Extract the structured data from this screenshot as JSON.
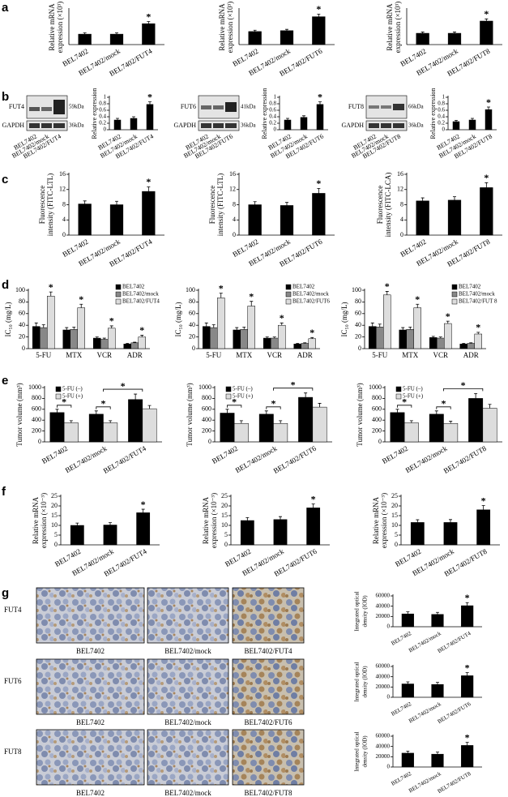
{
  "panels": [
    "a",
    "b",
    "c",
    "d",
    "e",
    "f",
    "g"
  ],
  "blots": [
    {
      "protein": "FUT4",
      "size": "59kDa",
      "control": "GAPDH",
      "control_size": "36kDa",
      "lanes": [
        "BEL7402",
        "BEL7402/mock",
        "BEL7402/FUT4"
      ]
    },
    {
      "protein": "FUT6",
      "size": "41kDa",
      "control": "GAPDH",
      "control_size": "36kDa",
      "lanes": [
        "BEL7402",
        "BEL7402/mock",
        "BEL7402/FUT6"
      ]
    },
    {
      "protein": "FUT8",
      "size": "66kDa",
      "control": "GAPDH",
      "control_size": "36kDa",
      "lanes": [
        "BEL7402",
        "BEL7402/mock",
        "BEL7402/FUT8"
      ]
    }
  ],
  "ihc": {
    "rows": [
      {
        "label": "FUT4",
        "captions": [
          "BEL7402",
          "BEL7402/mock",
          "BEL7402/FUT4"
        ]
      },
      {
        "label": "FUT6",
        "captions": [
          "BEL7402",
          "BEL7402/mock",
          "BEL7402/FUT6"
        ]
      },
      {
        "label": "FUT8",
        "captions": [
          "BEL7402",
          "BEL7402/mock",
          "BEL7402/FUT8"
        ]
      }
    ]
  },
  "chart_data": [
    {
      "type": "bar",
      "ylabel": [
        "Relative mRNA",
        "expression (×10³)"
      ],
      "categories": [
        "BEL7402",
        "BEL7402/mock",
        "BEL7402/FUT4"
      ],
      "series": [
        {
          "color": "#000000",
          "values": [
            12,
            12,
            24
          ],
          "errors": [
            1.5,
            1.5,
            2.5
          ]
        }
      ],
      "ylim": [
        0,
        40
      ],
      "annotations": [
        {
          "text": "*",
          "category": "BEL7402/FUT4"
        }
      ]
    },
    {
      "type": "bar",
      "ylabel": [
        "Relative mRNA",
        "expression (×10³)"
      ],
      "categories": [
        "BEL7402",
        "BEL7402/mock",
        "BEL7402/FUT6"
      ],
      "series": [
        {
          "color": "#000000",
          "values": [
            15,
            16,
            32
          ],
          "errors": [
            1.5,
            1.5,
            3
          ]
        }
      ],
      "ylim": [
        0,
        40
      ],
      "annotations": [
        {
          "text": "*",
          "category": "BEL7402/FUT6"
        }
      ]
    },
    {
      "type": "bar",
      "ylabel": [
        "Relative mRNA",
        "expression (×10³)"
      ],
      "categories": [
        "BEL7402",
        "BEL7402/mock",
        "BEL7402/FUT8"
      ],
      "series": [
        {
          "color": "#000000",
          "values": [
            13,
            13,
            27
          ],
          "errors": [
            1.5,
            1.5,
            2.5
          ]
        }
      ],
      "ylim": [
        0,
        40
      ],
      "annotations": [
        {
          "text": "*",
          "category": "BEL7402/FUT8"
        }
      ]
    },
    {
      "type": "bar",
      "ylabel": [
        "Relative expression"
      ],
      "categories": [
        "BEL7402",
        "BEL7402/mock",
        "BEL7402/FUT4"
      ],
      "series": [
        {
          "color": "#000000",
          "values": [
            0.3,
            0.35,
            0.78
          ],
          "errors": [
            0.05,
            0.05,
            0.08
          ]
        }
      ],
      "ylim": [
        0,
        1
      ],
      "yticks": [
        0,
        0.2,
        0.4,
        0.6,
        0.8,
        1
      ],
      "annotations": [
        {
          "text": "*",
          "category": "BEL7402/FUT4"
        }
      ]
    },
    {
      "type": "bar",
      "ylabel": [
        "Relative expression"
      ],
      "categories": [
        "BEL7402",
        "BEL7402/mock",
        "BEL7402/FUT6"
      ],
      "series": [
        {
          "color": "#000000",
          "values": [
            0.3,
            0.38,
            0.78
          ],
          "errors": [
            0.05,
            0.05,
            0.08
          ]
        }
      ],
      "ylim": [
        0,
        1
      ],
      "yticks": [
        0,
        0.2,
        0.4,
        0.6,
        0.8,
        1
      ],
      "annotations": [
        {
          "text": "*",
          "category": "BEL7402/FUT6"
        }
      ]
    },
    {
      "type": "bar",
      "ylabel": [
        "Relative expression"
      ],
      "categories": [
        "BEL7402",
        "BEL7402/mock",
        "BEL7402/FUT8"
      ],
      "series": [
        {
          "color": "#000000",
          "values": [
            0.25,
            0.3,
            0.62
          ],
          "errors": [
            0.04,
            0.05,
            0.08
          ]
        }
      ],
      "ylim": [
        0,
        1
      ],
      "yticks": [
        0,
        0.2,
        0.4,
        0.6,
        0.8,
        1
      ],
      "annotations": [
        {
          "text": "*",
          "category": "BEL7402/FUT8"
        }
      ]
    },
    {
      "type": "bar",
      "ylabel": [
        "Fluorescence",
        "intensity (FITC-LTL)"
      ],
      "categories": [
        "BEL7402",
        "BEL7402/mock",
        "BEL7402/FUT4"
      ],
      "series": [
        {
          "color": "#000000",
          "values": [
            8.2,
            8,
            11.5
          ],
          "errors": [
            0.8,
            0.9,
            1.2
          ]
        }
      ],
      "ylim": [
        0,
        16
      ],
      "yticks": [
        0,
        4,
        8,
        12,
        16
      ],
      "annotations": [
        {
          "text": "*",
          "category": "BEL7402/FUT4"
        }
      ]
    },
    {
      "type": "bar",
      "ylabel": [
        "Fluorescence",
        "intensity (FITC-LTL)"
      ],
      "categories": [
        "BEL7402",
        "BEL7402/mock",
        "BEL7402/FUT6"
      ],
      "series": [
        {
          "color": "#000000",
          "values": [
            8,
            7.8,
            11
          ],
          "errors": [
            0.8,
            0.8,
            1.3
          ]
        }
      ],
      "ylim": [
        0,
        16
      ],
      "yticks": [
        0,
        4,
        8,
        12,
        16
      ],
      "annotations": [
        {
          "text": "*",
          "category": "BEL7402/FUT6"
        }
      ]
    },
    {
      "type": "bar",
      "ylabel": [
        "Fluorescence",
        "intensity (FITC-LCA)"
      ],
      "categories": [
        "BEL7402",
        "BEL7402/mock",
        "BEL7402/FUT8"
      ],
      "series": [
        {
          "color": "#000000",
          "values": [
            9,
            9.2,
            12.5
          ],
          "errors": [
            0.8,
            0.9,
            1.3
          ]
        }
      ],
      "ylim": [
        0,
        16
      ],
      "yticks": [
        0,
        4,
        8,
        12,
        16
      ],
      "annotations": [
        {
          "text": "*",
          "category": "BEL7402/FUT8"
        }
      ]
    },
    {
      "type": "bar",
      "ylabel": [
        "IC₅₀ (mg/L)"
      ],
      "categories": [
        "5-FU",
        "MTX",
        "VCR",
        "ADR"
      ],
      "series": [
        {
          "name": "BEL7402",
          "color": "#000000",
          "values": [
            38,
            32,
            18,
            8
          ],
          "errors": [
            6,
            4,
            2,
            1
          ]
        },
        {
          "name": "BEL7402/mock",
          "color": "#888888",
          "values": [
            36,
            33,
            16,
            10
          ],
          "errors": [
            5,
            4,
            2,
            1
          ]
        },
        {
          "name": "BEL7402/FUT4",
          "color": "#dddddd",
          "values": [
            90,
            70,
            35,
            20
          ],
          "errors": [
            7,
            6,
            4,
            3
          ]
        }
      ],
      "ylim": [
        0,
        100
      ],
      "yticks": [
        0,
        20,
        40,
        60,
        80,
        100
      ],
      "annotations": [
        {
          "text": "*",
          "category": "5-FU"
        },
        {
          "text": "*",
          "category": "MTX"
        },
        {
          "text": "*",
          "category": "VCR"
        },
        {
          "text": "*",
          "category": "ADR"
        }
      ]
    },
    {
      "type": "bar",
      "ylabel": [
        "IC₅₀ (mg/L)"
      ],
      "categories": [
        "5-FU",
        "MTX",
        "VCR",
        "ADR"
      ],
      "series": [
        {
          "name": "BEL7402",
          "color": "#000000",
          "values": [
            38,
            32,
            18,
            8
          ],
          "errors": [
            6,
            4,
            2,
            1
          ]
        },
        {
          "name": "BEL7402/mock",
          "color": "#888888",
          "values": [
            36,
            33,
            18,
            9
          ],
          "errors": [
            5,
            4,
            2,
            1
          ]
        },
        {
          "name": "BEL7402/FUT6",
          "color": "#dddddd",
          "values": [
            87,
            73,
            40,
            17
          ],
          "errors": [
            8,
            8,
            4,
            2
          ]
        }
      ],
      "ylim": [
        0,
        100
      ],
      "yticks": [
        0,
        20,
        40,
        60,
        80,
        100
      ],
      "annotations": [
        {
          "text": "*",
          "category": "5-FU"
        },
        {
          "text": "*",
          "category": "MTX"
        },
        {
          "text": "*",
          "category": "VCR"
        },
        {
          "text": "*",
          "category": "ADR"
        }
      ]
    },
    {
      "type": "bar",
      "ylabel": [
        "IC₅₀ (mg/L)"
      ],
      "categories": [
        "5-FU",
        "MTX",
        "VCR",
        "ADR"
      ],
      "series": [
        {
          "name": "BEL7402",
          "color": "#000000",
          "values": [
            38,
            32,
            19,
            8
          ],
          "errors": [
            6,
            4,
            2,
            1
          ]
        },
        {
          "name": "BEL7402/mock",
          "color": "#888888",
          "values": [
            37,
            33,
            18,
            9
          ],
          "errors": [
            5,
            4,
            2,
            1
          ]
        },
        {
          "name": "BEL7402/FUT 8",
          "color": "#dddddd",
          "values": [
            92,
            70,
            43,
            25
          ],
          "errors": [
            6,
            6,
            4,
            3
          ]
        }
      ],
      "ylim": [
        0,
        100
      ],
      "yticks": [
        0,
        20,
        40,
        60,
        80,
        100
      ],
      "annotations": [
        {
          "text": "*",
          "category": "5-FU"
        },
        {
          "text": "*",
          "category": "MTX"
        },
        {
          "text": "*",
          "category": "VCR"
        },
        {
          "text": "*",
          "category": "ADR"
        }
      ]
    },
    {
      "type": "bar",
      "ylabel": [
        "Tumor volume (mm³)"
      ],
      "categories": [
        "BEL7402",
        "BEL7402/mock",
        "BEL7402/FUT4"
      ],
      "series": [
        {
          "name": "5-FU (–)",
          "color": "#000000",
          "values": [
            540,
            510,
            780
          ],
          "errors": [
            60,
            60,
            100
          ]
        },
        {
          "name": "5-FU (+)",
          "color": "#dddddd",
          "values": [
            350,
            350,
            610
          ],
          "errors": [
            40,
            40,
            60
          ]
        }
      ],
      "ylim": [
        0,
        1000
      ],
      "yticks": [
        0,
        200,
        400,
        600,
        800,
        1000
      ],
      "annotations": [
        {
          "text": "*",
          "category": "BEL7402",
          "bracket": true
        },
        {
          "text": "*",
          "category": "BEL7402/mock",
          "bracket": true
        },
        {
          "text": "*",
          "span": [
            "BEL7402/mock",
            "BEL7402/FUT4"
          ]
        }
      ]
    },
    {
      "type": "bar",
      "ylabel": [
        "Tumor volume (mm³)"
      ],
      "categories": [
        "BEL7402",
        "BEL7402/mock",
        "BEL7402/FUT6"
      ],
      "series": [
        {
          "name": "5-FU (–)",
          "color": "#000000",
          "values": [
            530,
            510,
            820
          ],
          "errors": [
            70,
            60,
            80
          ]
        },
        {
          "name": "5-FU (+)",
          "color": "#dddddd",
          "values": [
            340,
            340,
            640
          ],
          "errors": [
            50,
            50,
            70
          ]
        }
      ],
      "ylim": [
        0,
        1000
      ],
      "yticks": [
        0,
        200,
        400,
        600,
        800,
        1000
      ],
      "annotations": [
        {
          "text": "*",
          "category": "BEL7402",
          "bracket": true
        },
        {
          "text": "*",
          "category": "BEL7402/mock",
          "bracket": true
        },
        {
          "text": "*",
          "span": [
            "BEL7402/mock",
            "BEL7402/FUT6"
          ]
        }
      ]
    },
    {
      "type": "bar",
      "ylabel": [
        "Tumor volume (mm³)"
      ],
      "categories": [
        "BEL7402",
        "BEL7402/mock",
        "BEL7402/FUT8"
      ],
      "series": [
        {
          "name": "5-FU (–)",
          "color": "#000000",
          "values": [
            540,
            510,
            800
          ],
          "errors": [
            60,
            60,
            90
          ]
        },
        {
          "name": "5-FU (+)",
          "color": "#dddddd",
          "values": [
            350,
            340,
            620
          ],
          "errors": [
            40,
            40,
            70
          ]
        }
      ],
      "ylim": [
        0,
        1000
      ],
      "yticks": [
        0,
        200,
        400,
        600,
        800,
        1000
      ],
      "annotations": [
        {
          "text": "*",
          "category": "BEL7402",
          "bracket": true
        },
        {
          "text": "*",
          "category": "BEL7402/mock",
          "bracket": true
        },
        {
          "text": "*",
          "span": [
            "BEL7402/mock",
            "BEL7402/FUT8"
          ]
        }
      ]
    },
    {
      "type": "bar",
      "ylabel": [
        "Relative mRNA",
        "expression (×10⁻³)"
      ],
      "categories": [
        "BEL7402",
        "BEL7402/mock",
        "BEL7402/FUT4"
      ],
      "series": [
        {
          "color": "#000000",
          "values": [
            10,
            10.2,
            16.5
          ],
          "errors": [
            1.2,
            1.2,
            1.8
          ]
        }
      ],
      "ylim": [
        0,
        25
      ],
      "yticks": [
        0,
        5,
        10,
        15,
        20,
        25
      ],
      "annotations": [
        {
          "text": "*",
          "category": "BEL7402/FUT4"
        }
      ]
    },
    {
      "type": "bar",
      "ylabel": [
        "Relative mRNA",
        "expression (×10⁻³)"
      ],
      "categories": [
        "BEL7402",
        "BEL7402/mock",
        "BEL7402/FUT6"
      ],
      "series": [
        {
          "color": "#000000",
          "values": [
            12.5,
            13,
            19
          ],
          "errors": [
            1.5,
            1.5,
            2
          ]
        }
      ],
      "ylim": [
        0,
        25
      ],
      "yticks": [
        0,
        5,
        10,
        15,
        20,
        25
      ],
      "annotations": [
        {
          "text": "*",
          "category": "BEL7402/FUT6"
        }
      ]
    },
    {
      "type": "bar",
      "ylabel": [
        "Relative mRNA",
        "expression (×10⁻³)"
      ],
      "categories": [
        "BEL7402",
        "BEL7402/mock",
        "BEL7402/FUT8"
      ],
      "series": [
        {
          "color": "#000000",
          "values": [
            11.5,
            11.5,
            18
          ],
          "errors": [
            1.4,
            1.5,
            2.2
          ]
        }
      ],
      "ylim": [
        0,
        25
      ],
      "yticks": [
        0,
        5,
        10,
        15,
        20,
        25
      ],
      "annotations": [
        {
          "text": "*",
          "category": "BEL7402/FUT8"
        }
      ]
    },
    {
      "type": "bar",
      "ylabel": [
        "Integrated optical",
        "density (IOD)"
      ],
      "categories": [
        "BEL7402",
        "BEL7402/mock",
        "BEL7402/FUT4"
      ],
      "series": [
        {
          "color": "#000000",
          "values": [
            25000,
            24000,
            41000
          ],
          "errors": [
            4000,
            4000,
            6000
          ]
        }
      ],
      "ylim": [
        0,
        60000
      ],
      "yticks": [
        0,
        20000,
        40000,
        60000
      ],
      "annotations": [
        {
          "text": "*",
          "category": "BEL7402/FUT4"
        }
      ]
    },
    {
      "type": "bar",
      "ylabel": [
        "Integrated optical",
        "density (IOD)"
      ],
      "categories": [
        "BEL7402",
        "BEL7402/mock",
        "BEL7402/FUT6"
      ],
      "series": [
        {
          "color": "#000000",
          "values": [
            26000,
            25000,
            42000
          ],
          "errors": [
            4000,
            4000,
            6000
          ]
        }
      ],
      "ylim": [
        0,
        60000
      ],
      "yticks": [
        0,
        20000,
        40000,
        60000
      ],
      "annotations": [
        {
          "text": "*",
          "category": "BEL7402/FUT6"
        }
      ]
    },
    {
      "type": "bar",
      "ylabel": [
        "Integrated optical",
        "density (IOD)"
      ],
      "categories": [
        "BEL7402",
        "BEL7402/mock",
        "BEL7402/FUT8"
      ],
      "series": [
        {
          "color": "#000000",
          "values": [
            27000,
            25000,
            42000
          ],
          "errors": [
            4000,
            4000,
            6000
          ]
        }
      ],
      "ylim": [
        0,
        60000
      ],
      "yticks": [
        0,
        20000,
        40000,
        60000
      ],
      "annotations": [
        {
          "text": "*",
          "category": "BEL7402/FUT8"
        }
      ]
    }
  ]
}
